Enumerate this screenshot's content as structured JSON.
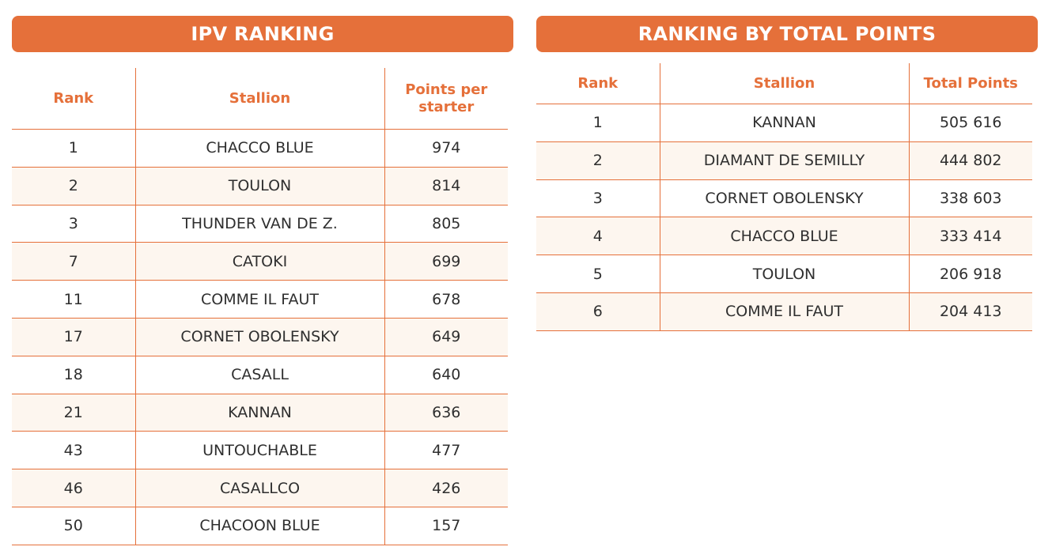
{
  "ipv": {
    "title": "IPV RANKING",
    "headers": {
      "rank": "Rank",
      "stallion": "Stallion",
      "points": "Points per starter"
    },
    "rows": [
      {
        "rank": "1",
        "stallion": "CHACCO BLUE",
        "points": "974"
      },
      {
        "rank": "2",
        "stallion": "TOULON",
        "points": "814"
      },
      {
        "rank": "3",
        "stallion": "THUNDER VAN DE Z.",
        "points": "805"
      },
      {
        "rank": "7",
        "stallion": "CATOKI",
        "points": "699"
      },
      {
        "rank": "11",
        "stallion": "COMME IL FAUT",
        "points": "678"
      },
      {
        "rank": "17",
        "stallion": "CORNET OBOLENSKY",
        "points": "649"
      },
      {
        "rank": "18",
        "stallion": "CASALL",
        "points": "640"
      },
      {
        "rank": "21",
        "stallion": "KANNAN",
        "points": "636"
      },
      {
        "rank": "43",
        "stallion": "UNTOUCHABLE",
        "points": "477"
      },
      {
        "rank": "46",
        "stallion": "CASALLCO",
        "points": "426"
      },
      {
        "rank": "50",
        "stallion": "CHACOON BLUE",
        "points": "157"
      }
    ]
  },
  "total": {
    "title": "RANKING BY TOTAL POINTS",
    "headers": {
      "rank": "Rank",
      "stallion": "Stallion",
      "points": "Total Points"
    },
    "rows": [
      {
        "rank": "1",
        "stallion": "KANNAN",
        "points": "505 616"
      },
      {
        "rank": "2",
        "stallion": "DIAMANT DE SEMILLY",
        "points": "444 802"
      },
      {
        "rank": "3",
        "stallion": "CORNET OBOLENSKY",
        "points": "338 603"
      },
      {
        "rank": "4",
        "stallion": "CHACCO BLUE",
        "points": "333 414"
      },
      {
        "rank": "5",
        "stallion": "TOULON",
        "points": "206 918"
      },
      {
        "rank": "6",
        "stallion": "COMME IL FAUT",
        "points": "204 413"
      }
    ]
  },
  "colors": {
    "accent": "#e5703a",
    "row_alt": "#fdf6ef"
  }
}
